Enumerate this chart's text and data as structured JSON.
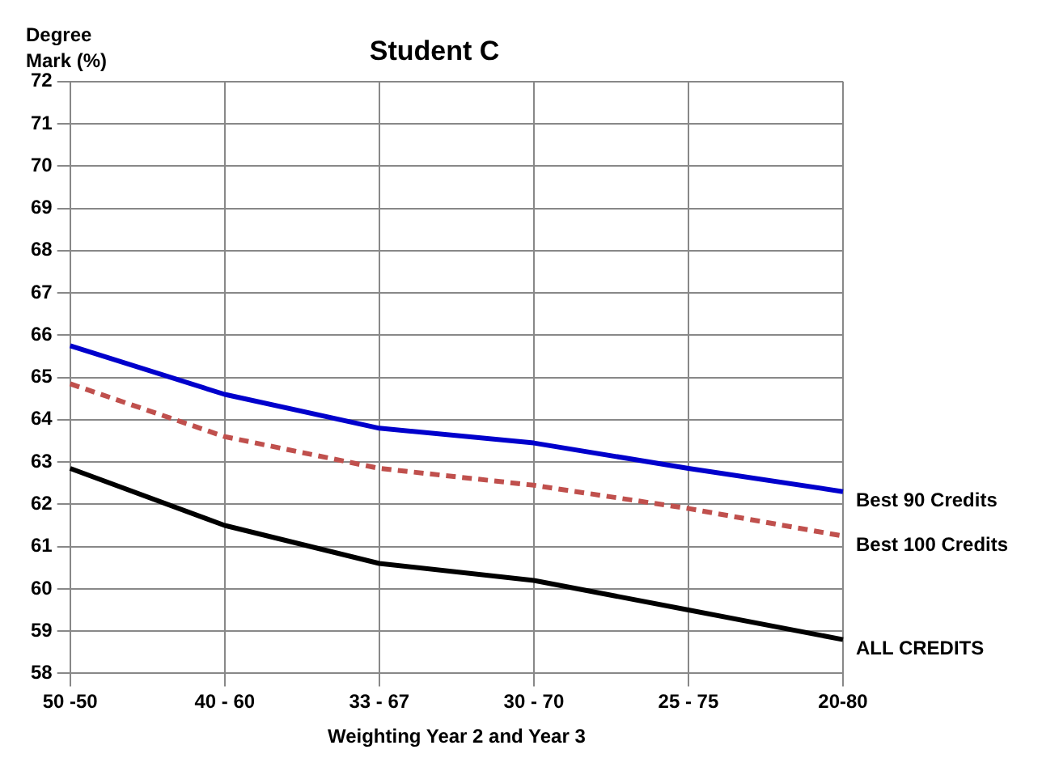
{
  "chart_data": {
    "type": "line",
    "title": "Student C",
    "ylabel": "Degree Mark (%)",
    "xlabel": "Weighting Year 2 and Year 3",
    "categories": [
      "50 -50",
      "40 - 60",
      "33 - 67",
      "30 - 70",
      "25 - 75",
      "20-80"
    ],
    "series": [
      {
        "name": "Best 90 Credits",
        "color": "#0000cc",
        "values": [
          65.75,
          64.6,
          63.8,
          63.45,
          62.85,
          62.3
        ],
        "line_style": "solid"
      },
      {
        "name": "Best 100 Credits",
        "color": "#c0504d",
        "values": [
          64.85,
          63.6,
          62.85,
          62.45,
          61.9,
          61.25
        ],
        "line_style": "dashed"
      },
      {
        "name": "ALL CREDITS",
        "color": "#000000",
        "values": [
          62.85,
          61.5,
          60.6,
          60.2,
          59.5,
          58.8
        ],
        "line_style": "solid"
      }
    ],
    "ylim": [
      58,
      72
    ],
    "yticks": [
      58,
      59,
      60,
      61,
      62,
      63,
      64,
      65,
      66,
      67,
      68,
      69,
      70,
      71,
      72
    ],
    "grid": true,
    "legend": false,
    "marker": "none"
  }
}
